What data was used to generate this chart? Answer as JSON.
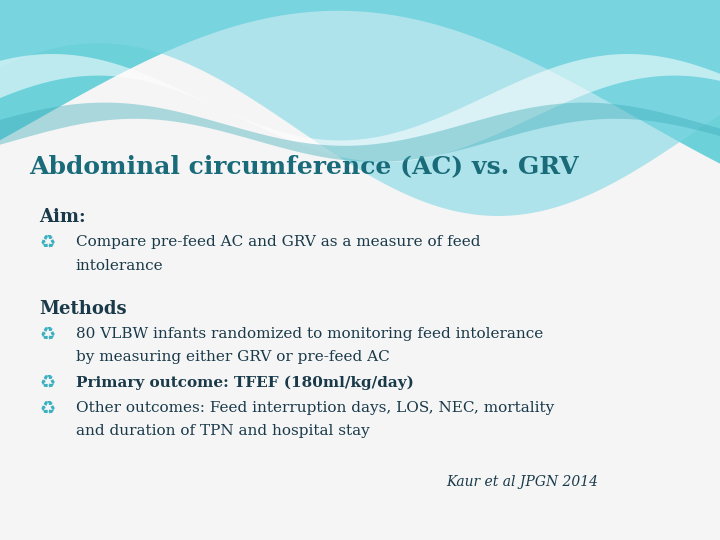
{
  "title": "Abdominal circumference (AC) vs. GRV",
  "title_color": "#1a6b7a",
  "title_fontsize": 18,
  "background_color": "#f5f5f5",
  "wave_bg_color": "#e8f6f8",
  "aim_label": "Aim:",
  "aim_bullet": "Compare pre-feed AC and GRV as a measure of feed\n    intolerance",
  "methods_label": "Methods",
  "methods_bullet1": "80 VLBW infants randomized to monitoring feed intolerance\n    by measuring either GRV or pre-feed AC",
  "methods_bullet2_bold": "Primary outcome: TFEF (180ml/kg/day)",
  "methods_bullet3": "Other outcomes: Feed interruption days, LOS, NEC, mortality\n    and duration of TPN and hospital stay",
  "citation": "Kaur et al JPGN 2014",
  "text_color": "#1a3a4a",
  "bullet_color": "#3ab0c0",
  "body_fontsize": 11,
  "label_fontsize": 13,
  "citation_fontsize": 10
}
